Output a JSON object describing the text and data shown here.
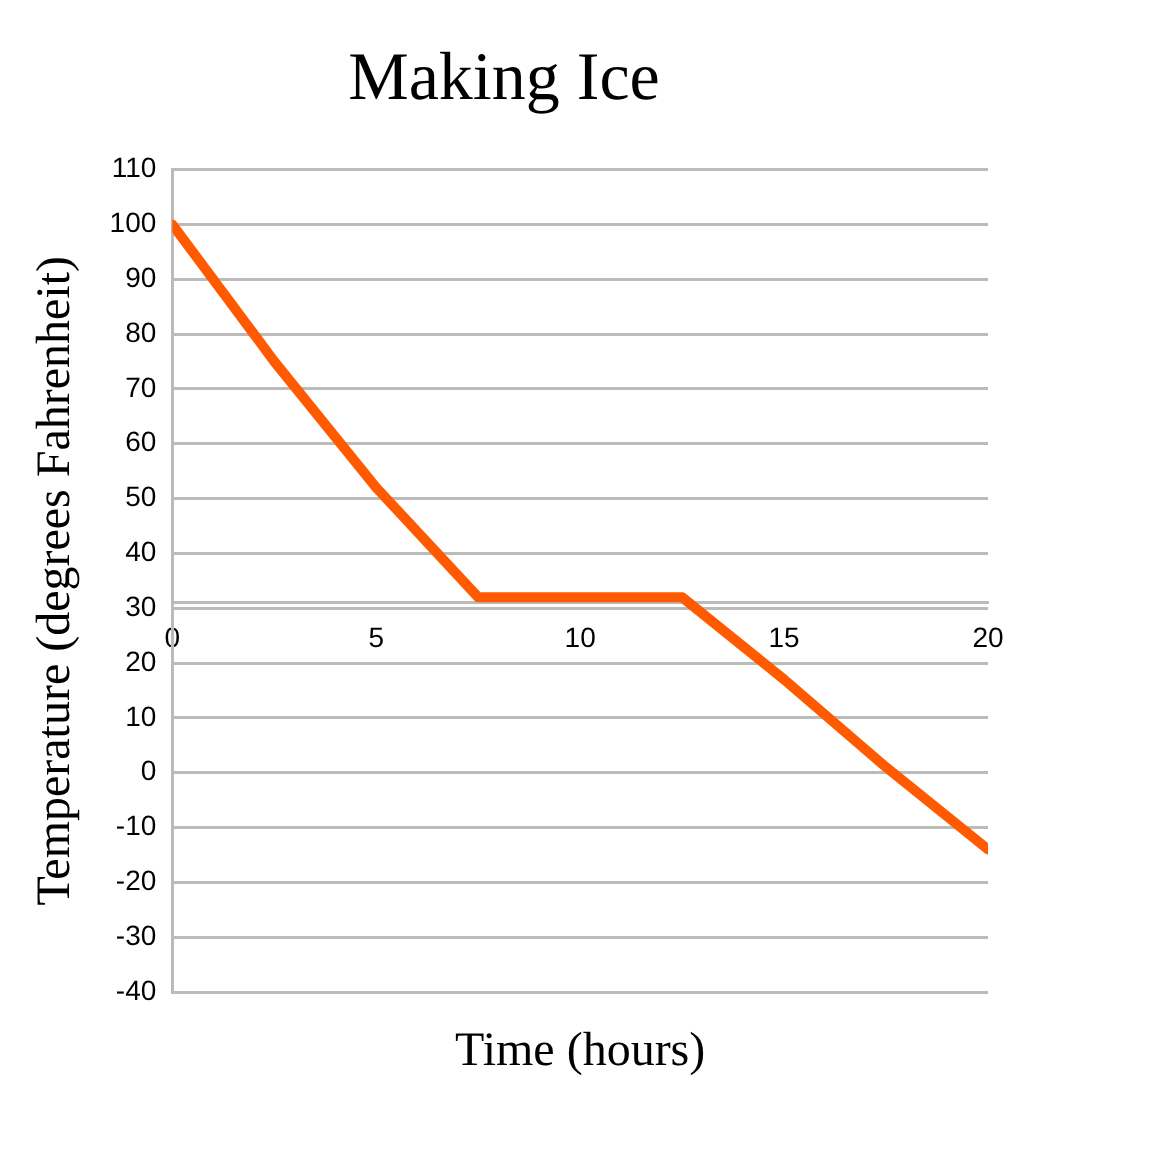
{
  "chart_data": {
    "type": "line",
    "title": "Making Ice",
    "xlabel": "Time (hours)",
    "ylabel": "Temperature (degrees Fahrenheit)",
    "x": [
      0,
      2.5,
      5,
      7.5,
      12.5,
      15,
      17.5,
      20
    ],
    "series": [
      {
        "color": "#ff5a00",
        "values": [
          100,
          75,
          52,
          32,
          32,
          17,
          1,
          -14
        ]
      }
    ],
    "xlim": [
      0,
      20
    ],
    "xticks": [
      0,
      5,
      10,
      15,
      20
    ],
    "ylim": [
      -40,
      110
    ],
    "yticks": [
      -40,
      -30,
      -20,
      -10,
      0,
      10,
      20,
      30,
      40,
      50,
      60,
      70,
      80,
      90,
      100,
      110
    ],
    "grid": "y",
    "legend": false,
    "marker": "none",
    "line_style": "solid"
  }
}
